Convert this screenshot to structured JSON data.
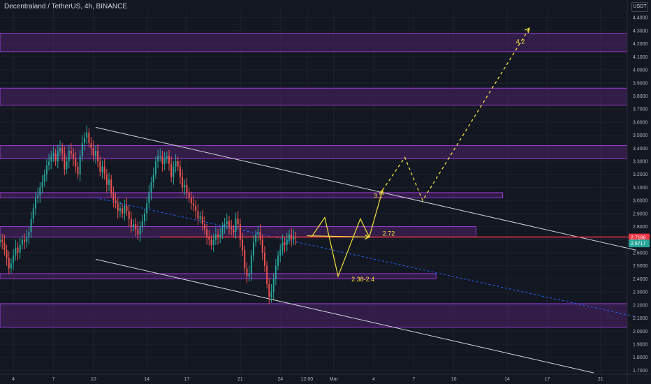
{
  "header": {
    "title": "Decentraland / TetherUS, 4h, BINANCE",
    "axis_unit": "USDT"
  },
  "colors": {
    "background": "#131722",
    "zone_fill": "#4a2266",
    "zone_border": "#9c3bd6",
    "up_candle": "#26a69a",
    "down_candle": "#ef5350",
    "projection": "#f5e13b",
    "trendline": "#d1d4dc",
    "midline": "#2962ff",
    "level_line": "#f23645",
    "last_price": "#26a69a"
  },
  "chart_data": {
    "type": "candlestick",
    "y_axis": {
      "ticks": [
        "1.7000",
        "1.8000",
        "1.9000",
        "2.0000",
        "2.1000",
        "2.2000",
        "2.3000",
        "2.4000",
        "2.5000",
        "2.6000",
        "2.7000",
        "2.8000",
        "2.9000",
        "3.0000",
        "3.1000",
        "3.2000",
        "3.3000",
        "3.4000",
        "3.5000",
        "3.6000",
        "3.7000",
        "3.8000",
        "3.9000",
        "4.0000",
        "4.1000",
        "4.2000",
        "4.3000",
        "4.4000"
      ],
      "range": [
        1.67,
        4.46
      ]
    },
    "x_axis": {
      "ticks": [
        "4",
        "7",
        "10",
        "14",
        "17",
        "21",
        "24",
        "12:00",
        "Mar",
        "4",
        "7",
        "10",
        "14",
        "17",
        "21"
      ],
      "tick_index": [
        6,
        24,
        42,
        66,
        84,
        108,
        126,
        138,
        150,
        168,
        186,
        204,
        228,
        246,
        270
      ],
      "bar_range": [
        0,
        282
      ]
    },
    "candles": {
      "interval": "4h",
      "start_index": 0,
      "closes": [
        2.7,
        2.68,
        2.62,
        2.56,
        2.48,
        2.52,
        2.58,
        2.64,
        2.6,
        2.66,
        2.7,
        2.68,
        2.72,
        2.76,
        2.86,
        2.94,
        3.02,
        3.04,
        3.1,
        3.14,
        3.2,
        3.27,
        3.3,
        3.34,
        3.36,
        3.3,
        3.38,
        3.4,
        3.36,
        3.24,
        3.3,
        3.38,
        3.36,
        3.32,
        3.26,
        3.2,
        3.34,
        3.44,
        3.48,
        3.52,
        3.44,
        3.4,
        3.34,
        3.38,
        3.3,
        3.22,
        3.26,
        3.2,
        3.12,
        3.16,
        3.06,
        3.0,
        2.98,
        2.92,
        2.94,
        2.9,
        2.96,
        2.92,
        2.86,
        2.8,
        2.82,
        2.78,
        2.74,
        2.8,
        2.84,
        2.9,
        2.98,
        3.06,
        3.14,
        3.2,
        3.3,
        3.34,
        3.34,
        3.28,
        3.32,
        3.34,
        3.28,
        3.18,
        3.26,
        3.3,
        3.26,
        3.18,
        3.1,
        3.12,
        3.06,
        3.02,
        2.98,
        2.96,
        2.92,
        2.86,
        2.88,
        2.82,
        2.78,
        2.72,
        2.7,
        2.66,
        2.7,
        2.74,
        2.72,
        2.74,
        2.8,
        2.82,
        2.84,
        2.8,
        2.78,
        2.76,
        2.86,
        2.82,
        2.7,
        2.62,
        2.48,
        2.42,
        2.44,
        2.58,
        2.68,
        2.74,
        2.76,
        2.7,
        2.6,
        2.5,
        2.36,
        2.26,
        2.3,
        2.4,
        2.5,
        2.58,
        2.62,
        2.68,
        2.66,
        2.7,
        2.74,
        2.7,
        2.72,
        2.7166
      ]
    },
    "current_levels": {
      "level": "2.7166",
      "last_price": "2.6717"
    },
    "zones": [
      {
        "low": 4.14,
        "high": 4.28,
        "x_from": 0,
        "x_to": 282
      },
      {
        "low": 3.73,
        "high": 3.86,
        "x_from": 0,
        "x_to": 282
      },
      {
        "low": 3.32,
        "high": 3.42,
        "x_from": 0,
        "x_to": 282
      },
      {
        "low": 3.02,
        "high": 3.06,
        "x_from": 0,
        "x_to": 226
      },
      {
        "low": 2.72,
        "high": 2.8,
        "x_from": 0,
        "x_to": 214
      },
      {
        "low": 2.4,
        "high": 2.44,
        "x_from": 0,
        "x_to": 196
      },
      {
        "low": 2.03,
        "high": 2.21,
        "x_from": 0,
        "x_to": 282
      }
    ],
    "annotations": [
      {
        "text": "4.2",
        "x": 232,
        "y": 4.2
      },
      {
        "text": "3.1",
        "x": 168,
        "y": 3.02
      },
      {
        "text": "2.72",
        "x": 172,
        "y": 2.73
      },
      {
        "text": "2.38-2.4",
        "x": 158,
        "y": 2.38
      }
    ]
  }
}
